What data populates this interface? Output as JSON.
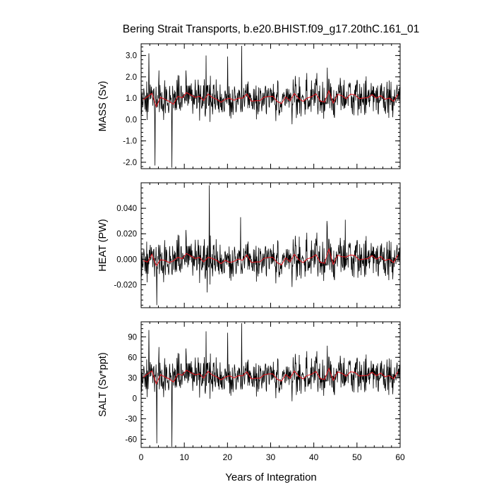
{
  "chart_data": {
    "type": "line",
    "title": "Bering Strait Transports, b.e20.BHIST.f09_g17.20thC.161_01",
    "xlabel": "Years of Integration",
    "xlim": [
      0,
      60
    ],
    "x_ticks": [
      "0",
      "10",
      "20",
      "30",
      "40",
      "50",
      "60"
    ],
    "grid": false,
    "line_colors": {
      "monthly": "#000000",
      "annual_mean": "#e8101a"
    },
    "panels": [
      {
        "ylabel": "MASS (Sv)",
        "ylim": [
          -2.3,
          3.55
        ],
        "y_ticks": [
          {
            "v": 3.0,
            "l": "3.0"
          },
          {
            "v": 2.0,
            "l": "2.0"
          },
          {
            "v": 1.0,
            "l": "1.0"
          },
          {
            "v": 0.0,
            "l": "0.0"
          },
          {
            "v": -1.0,
            "l": "-1.0"
          },
          {
            "v": -2.0,
            "l": "-2.0"
          }
        ],
        "base": 1.0,
        "amp": 0.62,
        "mean_amp": 0.12,
        "lo": -2.25,
        "hi": 3.5,
        "dec": 2,
        "spikes": [
          [
            3.2,
            -2.15
          ],
          [
            7.1,
            -2.25
          ],
          [
            15.0,
            3.0
          ],
          [
            20.0,
            2.95
          ],
          [
            23.3,
            3.45
          ],
          [
            1.8,
            3.1
          ],
          [
            4.1,
            2.3
          ]
        ]
      },
      {
        "ylabel": "HEAT (PW)",
        "ylim": [
          -0.038,
          0.06
        ],
        "y_ticks": [
          {
            "v": 0.04,
            "l": "0.040"
          },
          {
            "v": 0.02,
            "l": "0.020"
          },
          {
            "v": 0.0,
            "l": "0.000"
          },
          {
            "v": -0.02,
            "l": "-0.020"
          }
        ],
        "base": 0.0,
        "amp": 0.011,
        "mean_amp": 0.002,
        "lo": -0.037,
        "hi": 0.059,
        "dec": 4,
        "spikes": [
          [
            15.8,
            0.058
          ],
          [
            3.6,
            -0.036
          ],
          [
            15.3,
            -0.026
          ],
          [
            23.0,
            0.033
          ],
          [
            43.0,
            0.03
          ],
          [
            47.3,
            0.031
          ]
        ]
      },
      {
        "ylabel": "SALT (Sv*ppt)",
        "ylim": [
          -72,
          112
        ],
        "y_ticks": [
          {
            "v": 90,
            "l": "90"
          },
          {
            "v": 60,
            "l": "60"
          },
          {
            "v": 30,
            "l": "30"
          },
          {
            "v": 0,
            "l": "0"
          },
          {
            "v": -30,
            "l": "-30"
          },
          {
            "v": -60,
            "l": "-60"
          }
        ],
        "base": 33,
        "amp": 19,
        "mean_amp": 4,
        "lo": -71,
        "hi": 110,
        "dec": 1,
        "spikes": [
          [
            3.6,
            -66
          ],
          [
            7.1,
            -71
          ],
          [
            15.0,
            98
          ],
          [
            20.0,
            96
          ],
          [
            23.3,
            110
          ],
          [
            1.8,
            100
          ],
          [
            4.1,
            75
          ]
        ]
      }
    ]
  }
}
